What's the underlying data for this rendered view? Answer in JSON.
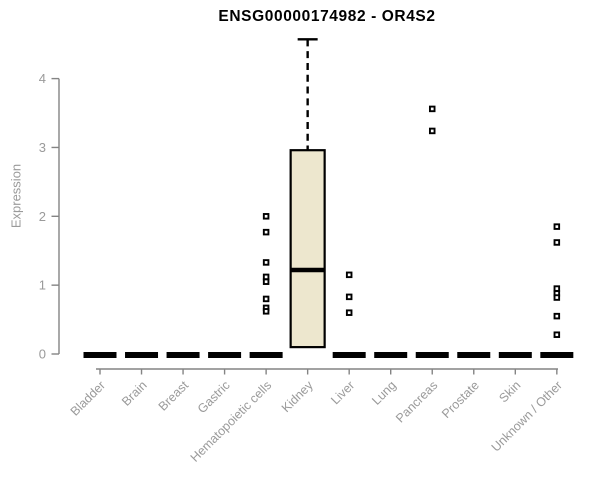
{
  "chart_data": {
    "type": "box",
    "title": "ENSG00000174982 - OR4S2",
    "ylabel": "Expression",
    "xlabel": "",
    "yticks": [
      0,
      1,
      2,
      3,
      4
    ],
    "ylim": [
      0,
      4.6
    ],
    "grid": false,
    "legend": "none",
    "categories": [
      "Bladder",
      "Brain",
      "Breast",
      "Gastric",
      "Hematopoietic cells",
      "Kidney",
      "Liver",
      "Lung",
      "Pancreas",
      "Prostate",
      "Skin",
      "Unknown / Other"
    ],
    "boxes": [
      {
        "category": "Bladder",
        "q1": 0,
        "median": 0,
        "q3": 0,
        "whisker_low": 0,
        "whisker_high": 0,
        "outliers": []
      },
      {
        "category": "Brain",
        "q1": 0,
        "median": 0,
        "q3": 0,
        "whisker_low": 0,
        "whisker_high": 0,
        "outliers": []
      },
      {
        "category": "Breast",
        "q1": 0,
        "median": 0,
        "q3": 0,
        "whisker_low": 0,
        "whisker_high": 0,
        "outliers": []
      },
      {
        "category": "Gastric",
        "q1": 0,
        "median": 0,
        "q3": 0,
        "whisker_low": 0,
        "whisker_high": 0,
        "outliers": []
      },
      {
        "category": "Hematopoietic cells",
        "q1": 0,
        "median": 0,
        "q3": 0,
        "whisker_low": 0,
        "whisker_high": 0,
        "outliers": [
          2.0,
          1.77,
          1.33,
          1.12,
          1.05,
          0.8,
          0.67,
          0.62
        ]
      },
      {
        "category": "Kidney",
        "q1": 0.1,
        "median": 1.22,
        "q3": 2.96,
        "whisker_low": 0.1,
        "whisker_high": 4.57,
        "outliers": []
      },
      {
        "category": "Liver",
        "q1": 0,
        "median": 0,
        "q3": 0,
        "whisker_low": 0,
        "whisker_high": 0,
        "outliers": [
          1.15,
          0.83,
          0.6
        ]
      },
      {
        "category": "Lung",
        "q1": 0,
        "median": 0,
        "q3": 0,
        "whisker_low": 0,
        "whisker_high": 0,
        "outliers": []
      },
      {
        "category": "Pancreas",
        "q1": 0,
        "median": 0,
        "q3": 0,
        "whisker_low": 0,
        "whisker_high": 0,
        "outliers": [
          3.56,
          3.24
        ]
      },
      {
        "category": "Prostate",
        "q1": 0,
        "median": 0,
        "q3": 0,
        "whisker_low": 0,
        "whisker_high": 0,
        "outliers": []
      },
      {
        "category": "Skin",
        "q1": 0,
        "median": 0,
        "q3": 0,
        "whisker_low": 0,
        "whisker_high": 0,
        "outliers": []
      },
      {
        "category": "Unknown / Other",
        "q1": 0,
        "median": 0,
        "q3": 0,
        "whisker_low": 0,
        "whisker_high": 0,
        "outliers": [
          1.85,
          1.62,
          0.95,
          0.88,
          0.82,
          0.55,
          0.28
        ]
      }
    ],
    "colors": {
      "box_fill": "#EDE7CE",
      "box_stroke": "#000000",
      "zero_bar": "#000000",
      "outlier_stroke": "#000000",
      "axis_line": "#848484",
      "tick_text": "#9A9A9A",
      "title_text": "#000000"
    }
  }
}
